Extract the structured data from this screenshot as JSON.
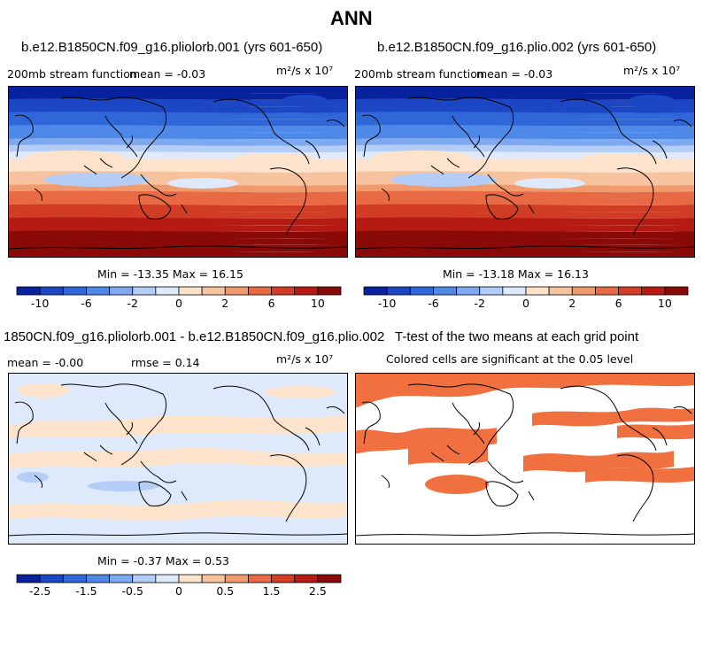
{
  "page": {
    "title": "ANN"
  },
  "panels": {
    "p1": {
      "title": "b.e12.B1850CN.f09_g16.pliolorb.001 (yrs 601-650)",
      "left": "200mb stream function",
      "mean": "mean =  -0.03",
      "units": "m²/s x 10⁷",
      "minmax": "Min = -13.35 Max =  16.15"
    },
    "p2": {
      "title": "b.e12.B1850CN.f09_g16.plio.002 (yrs 601-650)",
      "left": "200mb stream function",
      "mean": "mean =  -0.03",
      "units": "m²/s x 10⁷",
      "minmax": "Min = -13.18 Max =  16.13"
    },
    "p3": {
      "title": "1850CN.f09_g16.pliolorb.001 - b.e12.B1850CN.f09_g16.plio.002",
      "mean": "mean =  -0.00",
      "rmse": "rmse =   0.14",
      "units": "m²/s x 10⁷",
      "minmax": "Min = -0.37 Max =   0.53"
    },
    "p4": {
      "title": "T-test of the two means at each grid point",
      "subtitle": "Colored cells are significant at the 0.05 level"
    }
  },
  "chart_data": [
    {
      "type": "heatmap",
      "title": "b.e12.B1850CN.f09_g16.pliolorb.001 (yrs 601-650)",
      "variable": "200mb stream function",
      "units": "m2/s x 10^7",
      "mean": -0.03,
      "min": -13.35,
      "max": 16.15,
      "colorbar_ticks": [
        "-10",
        "-6",
        "-2",
        "0",
        "2",
        "6",
        "10"
      ],
      "levels": [
        -12,
        -10,
        -8,
        -6,
        -4,
        -2,
        -1,
        0,
        1,
        2,
        4,
        6,
        8,
        10,
        12
      ]
    },
    {
      "type": "heatmap",
      "title": "b.e12.B1850CN.f09_g16.plio.002 (yrs 601-650)",
      "variable": "200mb stream function",
      "units": "m2/s x 10^7",
      "mean": -0.03,
      "min": -13.18,
      "max": 16.13,
      "colorbar_ticks": [
        "-10",
        "-6",
        "-2",
        "0",
        "2",
        "6",
        "10"
      ],
      "levels": [
        -12,
        -10,
        -8,
        -6,
        -4,
        -2,
        -1,
        0,
        1,
        2,
        4,
        6,
        8,
        10,
        12
      ]
    },
    {
      "type": "heatmap",
      "title": "1850CN.f09_g16.pliolorb.001 - b.e12.B1850CN.f09_g16.plio.002",
      "units": "m2/s x 10^7",
      "mean": -0.0,
      "rmse": 0.14,
      "min": -0.37,
      "max": 0.53,
      "colorbar_ticks": [
        "-2.5",
        "-1.5",
        "-0.5",
        "0",
        "0.5",
        "1.5",
        "2.5"
      ],
      "levels": [
        -3,
        -2.5,
        -2,
        -1.5,
        -1,
        -0.5,
        -0.25,
        0,
        0.25,
        0.5,
        1,
        1.5,
        2,
        2.5,
        3
      ]
    },
    {
      "type": "heatmap",
      "title": "T-test of the two means at each grid point",
      "subtitle": "Colored cells are significant at the 0.05 level",
      "significance_level": 0.05,
      "colors": {
        "significant": "#f07040",
        "not_significant": "#ffffff"
      }
    }
  ],
  "colorbar_colors": [
    "#08219c",
    "#1b47c4",
    "#2f67d8",
    "#4f89e8",
    "#7ea9f0",
    "#b3cdf7",
    "#deeafb",
    "#fde3cc",
    "#f7c39e",
    "#f19a6e",
    "#e76a44",
    "#d13d24",
    "#b51b12",
    "#8a0a08"
  ]
}
